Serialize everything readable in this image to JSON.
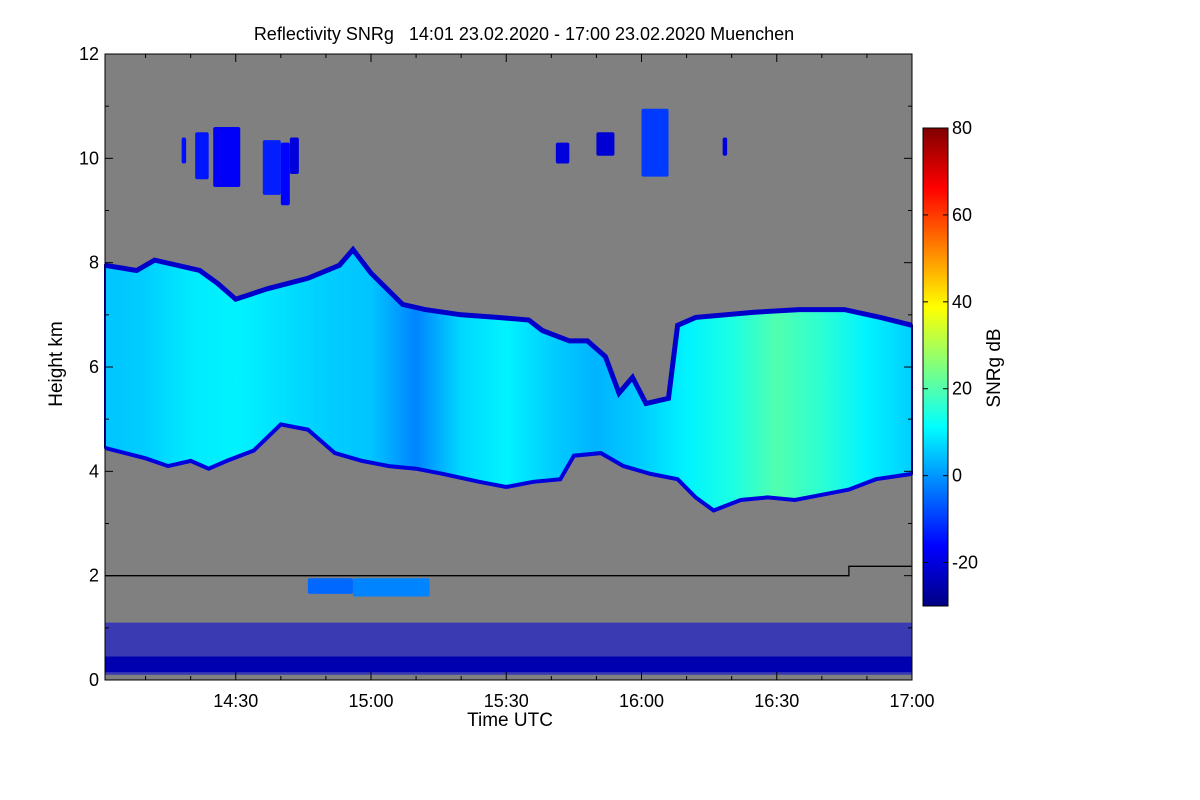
{
  "chart_data": {
    "type": "heatmap",
    "title": "Reflectivity SNRg   14:01 23.02.2020 - 17:00 23.02.2020 Muenchen",
    "xlabel": "Time UTC",
    "ylabel": "Height km",
    "colorbar_label": "SNRg dB",
    "x_range_minutes": [
      841,
      1020
    ],
    "x_ticks": [
      {
        "label": "14:30",
        "minutes": 870
      },
      {
        "label": "15:00",
        "minutes": 900
      },
      {
        "label": "15:30",
        "minutes": 930
      },
      {
        "label": "16:00",
        "minutes": 960
      },
      {
        "label": "16:30",
        "minutes": 990
      },
      {
        "label": "17:00",
        "minutes": 1020
      }
    ],
    "ylim": [
      0,
      12
    ],
    "y_ticks": [
      0,
      2,
      4,
      6,
      8,
      10,
      12
    ],
    "colorbar_range": [
      -30,
      80
    ],
    "colorbar_ticks": [
      -20,
      0,
      20,
      40,
      60,
      80
    ],
    "background_color": "#808080",
    "reference_line": {
      "description": "height reference line",
      "points": [
        [
          841,
          2.0
        ],
        [
          1006,
          2.0
        ],
        [
          1006,
          2.18
        ],
        [
          1020,
          2.18
        ]
      ]
    },
    "cloud_layers": [
      {
        "name": "main-cloud-deck",
        "top": [
          [
            841,
            7.95
          ],
          [
            848,
            7.85
          ],
          [
            852,
            8.05
          ],
          [
            862,
            7.85
          ],
          [
            866,
            7.6
          ],
          [
            870,
            7.3
          ],
          [
            877,
            7.5
          ],
          [
            886,
            7.7
          ],
          [
            893,
            7.95
          ],
          [
            896,
            8.25
          ],
          [
            900,
            7.8
          ],
          [
            907,
            7.2
          ],
          [
            912,
            7.1
          ],
          [
            920,
            7.0
          ],
          [
            928,
            6.95
          ],
          [
            935,
            6.9
          ],
          [
            938,
            6.7
          ],
          [
            944,
            6.5
          ],
          [
            948,
            6.5
          ],
          [
            952,
            6.2
          ],
          [
            955,
            5.5
          ],
          [
            958,
            5.8
          ],
          [
            961,
            5.3
          ],
          [
            966,
            5.4
          ],
          [
            968,
            6.8
          ],
          [
            972,
            6.95
          ],
          [
            985,
            7.05
          ],
          [
            995,
            7.1
          ],
          [
            1005,
            7.1
          ],
          [
            1013,
            6.95
          ],
          [
            1020,
            6.8
          ]
        ],
        "bottom": [
          [
            841,
            4.45
          ],
          [
            850,
            4.25
          ],
          [
            855,
            4.1
          ],
          [
            860,
            4.2
          ],
          [
            864,
            4.05
          ],
          [
            868,
            4.2
          ],
          [
            874,
            4.4
          ],
          [
            880,
            4.9
          ],
          [
            886,
            4.8
          ],
          [
            892,
            4.35
          ],
          [
            898,
            4.2
          ],
          [
            904,
            4.1
          ],
          [
            910,
            4.05
          ],
          [
            916,
            3.95
          ],
          [
            924,
            3.8
          ],
          [
            930,
            3.7
          ],
          [
            936,
            3.8
          ],
          [
            942,
            3.85
          ],
          [
            945,
            4.3
          ],
          [
            951,
            4.35
          ],
          [
            956,
            4.1
          ],
          [
            962,
            3.95
          ],
          [
            968,
            3.85
          ],
          [
            972,
            3.5
          ],
          [
            976,
            3.25
          ],
          [
            982,
            3.45
          ],
          [
            988,
            3.5
          ],
          [
            994,
            3.45
          ],
          [
            1000,
            3.55
          ],
          [
            1006,
            3.65
          ],
          [
            1012,
            3.85
          ],
          [
            1020,
            3.95
          ]
        ],
        "snr_db": [
          [
            841,
            5
          ],
          [
            850,
            6
          ],
          [
            860,
            9
          ],
          [
            870,
            10
          ],
          [
            880,
            8
          ],
          [
            890,
            6
          ],
          [
            900,
            5
          ],
          [
            910,
            -2
          ],
          [
            920,
            7
          ],
          [
            930,
            10
          ],
          [
            940,
            6
          ],
          [
            950,
            3
          ],
          [
            960,
            6
          ],
          [
            970,
            10
          ],
          [
            980,
            14
          ],
          [
            990,
            20
          ],
          [
            1000,
            16
          ],
          [
            1010,
            10
          ],
          [
            1020,
            6
          ]
        ]
      },
      {
        "name": "cirrus-cell-1",
        "x_range": [
          858,
          859
        ],
        "top": 10.4,
        "bottom": 9.9,
        "snr_db": -15
      },
      {
        "name": "cirrus-cell-2",
        "x_range": [
          861,
          864
        ],
        "top": 10.5,
        "bottom": 9.6,
        "snr_db": -14
      },
      {
        "name": "cirrus-cell-3",
        "x_range": [
          865,
          871
        ],
        "top": 10.6,
        "bottom": 9.45,
        "snr_db": -17
      },
      {
        "name": "cirrus-cell-4",
        "x_range": [
          876,
          880
        ],
        "top": 10.35,
        "bottom": 9.3,
        "snr_db": -13
      },
      {
        "name": "cirrus-cell-5",
        "x_range": [
          880,
          882
        ],
        "top": 10.3,
        "bottom": 9.1,
        "snr_db": -16
      },
      {
        "name": "cirrus-cell-6",
        "x_range": [
          882,
          884
        ],
        "top": 10.4,
        "bottom": 9.7,
        "snr_db": -20
      },
      {
        "name": "cirrus-cell-7",
        "x_range": [
          941,
          944
        ],
        "top": 10.3,
        "bottom": 9.9,
        "snr_db": -20
      },
      {
        "name": "cirrus-cell-8",
        "x_range": [
          950,
          954
        ],
        "top": 10.5,
        "bottom": 10.05,
        "snr_db": -21
      },
      {
        "name": "cirrus-cell-9",
        "x_range": [
          960,
          966
        ],
        "top": 10.95,
        "bottom": 9.65,
        "snr_db": -10
      },
      {
        "name": "cirrus-cell-10",
        "x_range": [
          978,
          979
        ],
        "top": 10.4,
        "bottom": 10.05,
        "snr_db": -20
      },
      {
        "name": "low-layer-1",
        "x_range": [
          886,
          896
        ],
        "top": 1.95,
        "bottom": 1.65,
        "snr_db": -5
      },
      {
        "name": "low-layer-2",
        "x_range": [
          896,
          913
        ],
        "top": 1.95,
        "bottom": 1.6,
        "snr_db": -2
      },
      {
        "name": "surface-clutter",
        "x_range": [
          841,
          1020
        ],
        "top": 1.1,
        "bottom": 0.1,
        "snr_db": -20
      }
    ]
  }
}
